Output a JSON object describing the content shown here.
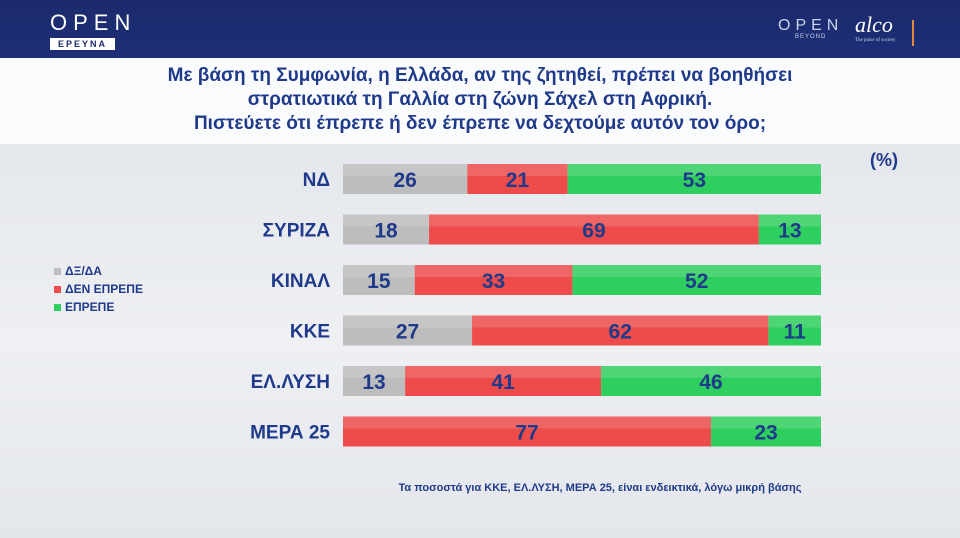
{
  "brand": {
    "open_word": "OPEN",
    "open_sub": "ΕΡΕΥΝΑ",
    "open_beyond_word": "OPEN",
    "open_beyond_sub": "BEYOND",
    "alco_word": "alco",
    "alco_sub": "The pulse of society"
  },
  "question": {
    "line1": "Με βάση τη Συμφωνία, η Ελλάδα, αν της ζητηθεί, πρέπει να βοηθήσει",
    "line2": "στρατιωτικά τη Γαλλία στη ζώνη Σάχελ στη Αφρική.",
    "line3": "Πιστεύετε ότι έπρεπε ή δεν έπρεπε να δεχτούμε αυτόν τον όρο;"
  },
  "unit_label": "(%)",
  "footnote": "Τα ποσοστά για ΚΚΕ, ΕΛ.ΛΥΣΗ, ΜΕΡΑ 25, είναι ενδεικτικά, λόγω μικρή βάσης",
  "colors": {
    "gray": "#bdbdbd",
    "red": "#ee4b4b",
    "green": "#2fcf5f",
    "label_blue": "#1f3a8a"
  },
  "chart_data": {
    "type": "bar",
    "orientation": "horizontal",
    "stacked": true,
    "categories": [
      "ΝΔ",
      "ΣΥΡΙΖΑ",
      "ΚΙΝΑΛ",
      "ΚΚΕ",
      "ΕΛ.ΛΥΣΗ",
      "ΜΕΡΑ 25"
    ],
    "series": [
      {
        "name": "ΔΞ/ΔΑ",
        "color": "#bdbdbd",
        "values": [
          26,
          18,
          15,
          27,
          13,
          0
        ]
      },
      {
        "name": "ΔΕΝ ΕΠΡΕΠΕ",
        "color": "#ee4b4b",
        "values": [
          21,
          69,
          33,
          62,
          41,
          77
        ]
      },
      {
        "name": "ΕΠΡΕΠΕ",
        "color": "#2fcf5f",
        "values": [
          53,
          13,
          52,
          11,
          46,
          23
        ]
      }
    ],
    "legend_position": "left",
    "grid": false
  }
}
